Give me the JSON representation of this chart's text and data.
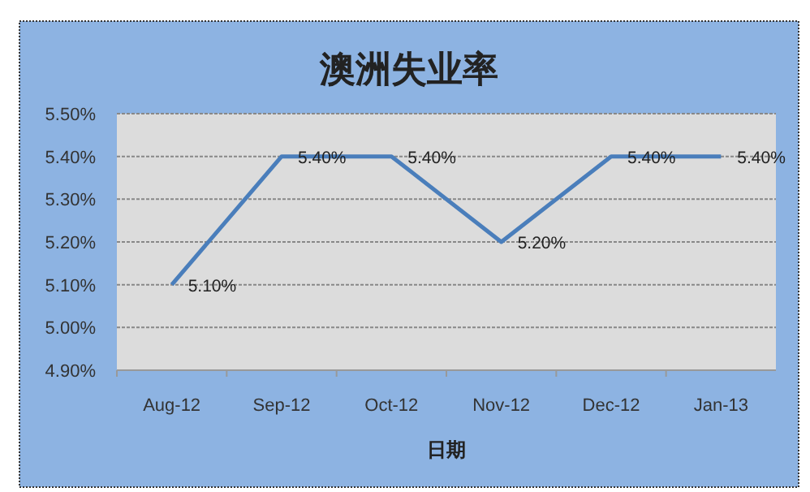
{
  "chart_data": {
    "type": "line",
    "title": "澳洲失业率",
    "xlabel": "日期",
    "categories": [
      "Aug-12",
      "Sep-12",
      "Oct-12",
      "Nov-12",
      "Dec-12",
      "Jan-13"
    ],
    "series": [
      {
        "color": "#4a7ebb",
        "values": [
          5.1,
          5.4,
          5.4,
          5.2,
          5.4,
          5.4
        ],
        "value_labels": [
          "5.10%",
          "5.40%",
          "5.40%",
          "5.20%",
          "5.40%",
          "5.40%"
        ]
      }
    ],
    "ylim": [
      4.9,
      5.5
    ],
    "yticks": [
      {
        "value": 4.9,
        "label": "4.90%"
      },
      {
        "value": 5.0,
        "label": "5.00%"
      },
      {
        "value": 5.1,
        "label": "5.10%"
      },
      {
        "value": 5.2,
        "label": "5.20%"
      },
      {
        "value": 5.3,
        "label": "5.30%"
      },
      {
        "value": 5.4,
        "label": "5.40%"
      },
      {
        "value": 5.5,
        "label": "5.50%"
      }
    ],
    "grid": "y",
    "marker": "none",
    "line_style": "solid"
  }
}
